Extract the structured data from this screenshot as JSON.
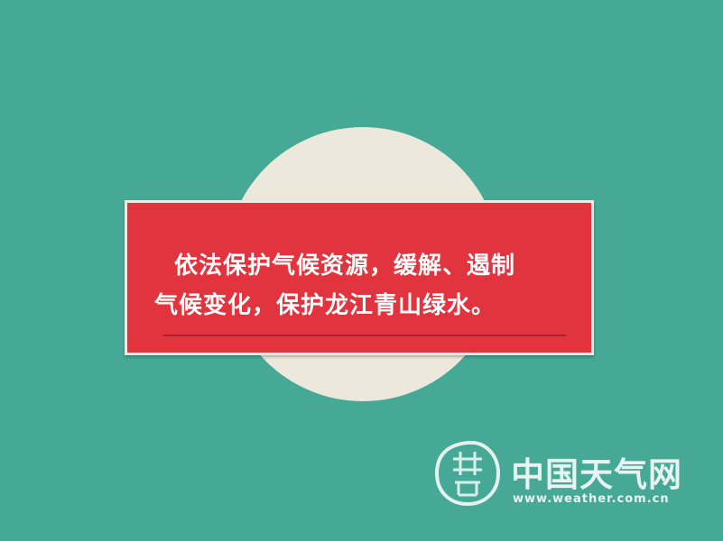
{
  "banner": {
    "line1": "依法保护气候资源，缓解、遏制",
    "line2": "气候变化，保护龙江青山绿水。"
  },
  "watermark": {
    "name": "中国天气网",
    "url": "www.weather.com.cn"
  },
  "colors": {
    "background": "#45a996",
    "circle": "#ece9dc",
    "banner": "#e2343e",
    "banner_border": "#f1e9e2",
    "text": "#ffffff"
  }
}
